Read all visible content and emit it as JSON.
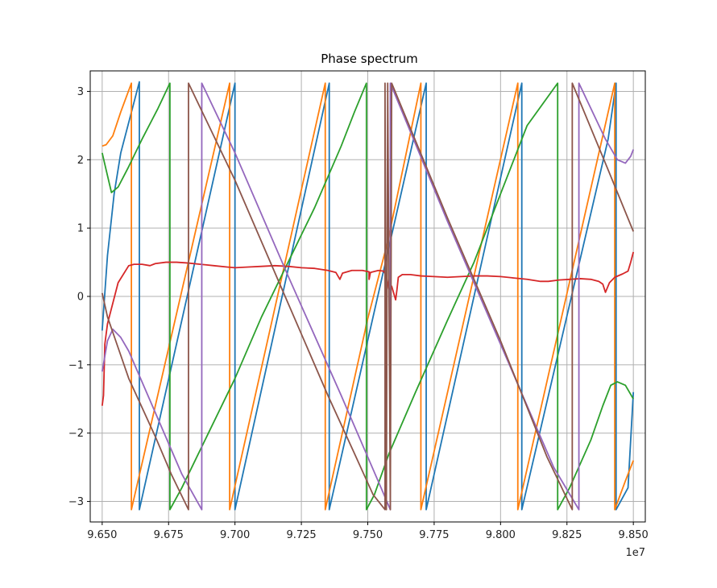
{
  "chart_data": {
    "type": "line",
    "title": "Phase spectrum",
    "xlabel": "",
    "ylabel": "",
    "x_offset_label": "1e7",
    "xlim": [
      9.6455,
      9.8545
    ],
    "ylim": [
      -3.3,
      3.3
    ],
    "x_ticks": [
      9.65,
      9.675,
      9.7,
      9.725,
      9.75,
      9.775,
      9.8,
      9.825,
      9.85
    ],
    "x_tick_labels": [
      "9.650",
      "9.675",
      "9.700",
      "9.725",
      "9.750",
      "9.775",
      "9.800",
      "9.825",
      "9.850"
    ],
    "y_ticks": [
      -3,
      -2,
      -1,
      0,
      1,
      2,
      3
    ],
    "y_tick_labels": [
      "−3",
      "−2",
      "−1",
      "0",
      "1",
      "2",
      "3"
    ],
    "grid": true,
    "legend": false,
    "series": [
      {
        "color": "#1f77b4",
        "points": [
          [
            9.65,
            -0.5
          ],
          [
            9.652,
            0.6
          ],
          [
            9.6545,
            1.5
          ],
          [
            9.657,
            2.1
          ],
          [
            9.664,
            3.14
          ],
          [
            9.664,
            -3.12
          ],
          [
            9.7,
            3.12
          ],
          [
            9.7,
            -3.12
          ],
          [
            9.7355,
            3.12
          ],
          [
            9.7355,
            -3.12
          ],
          [
            9.772,
            3.12
          ],
          [
            9.772,
            -3.12
          ],
          [
            9.808,
            3.12
          ],
          [
            9.808,
            -3.12
          ],
          [
            9.8405,
            2.3
          ],
          [
            9.8435,
            3.12
          ],
          [
            9.8435,
            -3.12
          ],
          [
            9.848,
            -2.8
          ],
          [
            9.85,
            -1.4
          ]
        ]
      },
      {
        "color": "#ff7f0e",
        "points": [
          [
            9.65,
            2.2
          ],
          [
            9.6515,
            2.22
          ],
          [
            9.654,
            2.35
          ],
          [
            9.657,
            2.7
          ],
          [
            9.661,
            3.12
          ],
          [
            9.661,
            -3.12
          ],
          [
            9.698,
            3.12
          ],
          [
            9.698,
            -3.12
          ],
          [
            9.734,
            3.12
          ],
          [
            9.734,
            -3.12
          ],
          [
            9.749,
            -0.5
          ],
          [
            9.7495,
            -0.4
          ],
          [
            9.7575,
            0.8
          ],
          [
            9.77,
            3.12
          ],
          [
            9.77,
            -3.12
          ],
          [
            9.8065,
            3.12
          ],
          [
            9.8065,
            -3.12
          ],
          [
            9.843,
            3.12
          ],
          [
            9.843,
            -3.12
          ],
          [
            9.847,
            -2.7
          ],
          [
            9.85,
            -2.4
          ]
        ]
      },
      {
        "color": "#2ca02c",
        "points": [
          [
            9.65,
            2.1
          ],
          [
            9.6515,
            1.85
          ],
          [
            9.6535,
            1.52
          ],
          [
            9.656,
            1.6
          ],
          [
            9.66,
            1.9
          ],
          [
            9.665,
            2.3
          ],
          [
            9.669,
            2.6
          ],
          [
            9.671,
            2.75
          ],
          [
            9.6755,
            3.12
          ],
          [
            9.6755,
            -3.12
          ],
          [
            9.68,
            -2.8
          ],
          [
            9.69,
            -2.0
          ],
          [
            9.7,
            -1.2
          ],
          [
            9.71,
            -0.3
          ],
          [
            9.72,
            0.5
          ],
          [
            9.73,
            1.3
          ],
          [
            9.74,
            2.2
          ],
          [
            9.745,
            2.7
          ],
          [
            9.7495,
            3.12
          ],
          [
            9.7495,
            -3.12
          ],
          [
            9.7525,
            -2.9
          ],
          [
            9.758,
            -2.3
          ],
          [
            9.768,
            -1.4
          ],
          [
            9.78,
            -0.35
          ],
          [
            9.79,
            0.5
          ],
          [
            9.8,
            1.5
          ],
          [
            9.81,
            2.5
          ],
          [
            9.8215,
            3.12
          ],
          [
            9.8215,
            -3.12
          ],
          [
            9.826,
            -2.8
          ],
          [
            9.834,
            -2.1
          ],
          [
            9.8385,
            -1.6
          ],
          [
            9.8415,
            -1.3
          ],
          [
            9.844,
            -1.25
          ],
          [
            9.847,
            -1.3
          ],
          [
            9.85,
            -1.5
          ]
        ]
      },
      {
        "color": "#d62728",
        "points": [
          [
            9.65,
            -1.6
          ],
          [
            9.6505,
            -1.45
          ],
          [
            9.651,
            -0.7
          ],
          [
            9.652,
            -0.4
          ],
          [
            9.656,
            0.2
          ],
          [
            9.66,
            0.45
          ],
          [
            9.662,
            0.47
          ],
          [
            9.665,
            0.47
          ],
          [
            9.668,
            0.45
          ],
          [
            9.67,
            0.48
          ],
          [
            9.674,
            0.5
          ],
          [
            9.678,
            0.5
          ],
          [
            9.682,
            0.49
          ],
          [
            9.687,
            0.47
          ],
          [
            9.692,
            0.45
          ],
          [
            9.697,
            0.43
          ],
          [
            9.7,
            0.42
          ],
          [
            9.705,
            0.43
          ],
          [
            9.71,
            0.44
          ],
          [
            9.715,
            0.45
          ],
          [
            9.72,
            0.44
          ],
          [
            9.725,
            0.42
          ],
          [
            9.73,
            0.41
          ],
          [
            9.735,
            0.38
          ],
          [
            9.738,
            0.35
          ],
          [
            9.7395,
            0.25
          ],
          [
            9.7405,
            0.34
          ],
          [
            9.744,
            0.38
          ],
          [
            9.748,
            0.38
          ],
          [
            9.7505,
            0.36
          ],
          [
            9.7505,
            0.25
          ],
          [
            9.751,
            0.35
          ],
          [
            9.754,
            0.38
          ],
          [
            9.756,
            0.37
          ],
          [
            9.757,
            0.3
          ],
          [
            9.758,
            0.1
          ],
          [
            9.759,
            0.15
          ],
          [
            9.7605,
            -0.05
          ],
          [
            9.761,
            0.1
          ],
          [
            9.7615,
            0.28
          ],
          [
            9.763,
            0.32
          ],
          [
            9.766,
            0.32
          ],
          [
            9.77,
            0.3
          ],
          [
            9.775,
            0.29
          ],
          [
            9.78,
            0.28
          ],
          [
            9.785,
            0.29
          ],
          [
            9.79,
            0.3
          ],
          [
            9.795,
            0.3
          ],
          [
            9.8,
            0.29
          ],
          [
            9.805,
            0.27
          ],
          [
            9.81,
            0.25
          ],
          [
            9.815,
            0.22
          ],
          [
            9.818,
            0.22
          ],
          [
            9.822,
            0.24
          ],
          [
            9.826,
            0.25
          ],
          [
            9.83,
            0.26
          ],
          [
            9.834,
            0.25
          ],
          [
            9.837,
            0.22
          ],
          [
            9.8385,
            0.18
          ],
          [
            9.8395,
            0.06
          ],
          [
            9.841,
            0.2
          ],
          [
            9.843,
            0.28
          ],
          [
            9.846,
            0.33
          ],
          [
            9.848,
            0.37
          ],
          [
            9.849,
            0.5
          ],
          [
            9.85,
            0.65
          ]
        ]
      },
      {
        "color": "#9467bd",
        "points": [
          [
            9.65,
            -1.1
          ],
          [
            9.652,
            -0.65
          ],
          [
            9.654,
            -0.48
          ],
          [
            9.657,
            -0.6
          ],
          [
            9.66,
            -0.8
          ],
          [
            9.67,
            -1.7
          ],
          [
            9.68,
            -2.6
          ],
          [
            9.6875,
            -3.12
          ],
          [
            9.6875,
            3.12
          ],
          [
            9.7,
            2.1
          ],
          [
            9.72,
            0.3
          ],
          [
            9.74,
            -1.45
          ],
          [
            9.755,
            -2.8
          ],
          [
            9.7585,
            -3.12
          ],
          [
            9.7585,
            3.12
          ],
          [
            9.78,
            1.1
          ],
          [
            9.8,
            -0.7
          ],
          [
            9.82,
            -2.5
          ],
          [
            9.8295,
            -3.12
          ],
          [
            9.8295,
            3.12
          ],
          [
            9.8395,
            2.3
          ],
          [
            9.844,
            2.0
          ],
          [
            9.847,
            1.95
          ],
          [
            9.849,
            2.05
          ],
          [
            9.85,
            2.15
          ]
        ]
      },
      {
        "color": "#8c564b",
        "points": [
          [
            9.65,
            0.05
          ],
          [
            9.652,
            -0.3
          ],
          [
            9.656,
            -0.75
          ],
          [
            9.66,
            -1.2
          ],
          [
            9.67,
            -2.05
          ],
          [
            9.676,
            -2.6
          ],
          [
            9.6825,
            -3.12
          ],
          [
            9.6825,
            3.12
          ],
          [
            9.7,
            1.7
          ],
          [
            9.72,
            -0.1
          ],
          [
            9.735,
            -1.45
          ],
          [
            9.745,
            -2.3
          ],
          [
            9.752,
            -2.9
          ],
          [
            9.7565,
            -3.12
          ],
          [
            9.7565,
            3.12
          ],
          [
            9.757,
            -3.12
          ],
          [
            9.7575,
            3.12
          ],
          [
            9.7585,
            -3.12
          ],
          [
            9.759,
            3.12
          ],
          [
            9.78,
            1.15
          ],
          [
            9.8,
            -0.65
          ],
          [
            9.8175,
            -2.35
          ],
          [
            9.827,
            -3.12
          ],
          [
            9.827,
            3.12
          ],
          [
            9.84,
            1.9
          ],
          [
            9.85,
            0.95
          ]
        ]
      }
    ]
  }
}
